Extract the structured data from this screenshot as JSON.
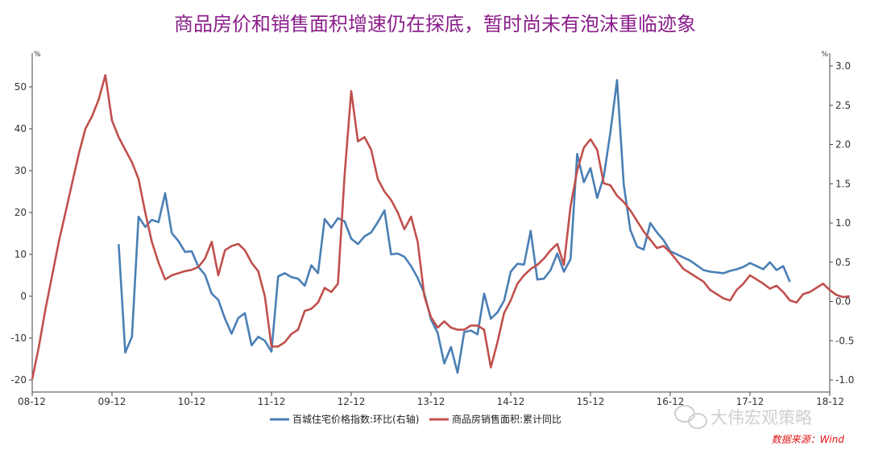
{
  "title": "商品房价和销售面积增速仍在探底，暂时尚未有泡沫重临迹象",
  "watermark": "大伟宏观策略",
  "source": "数据来源：Wind",
  "chart_data": {
    "type": "line",
    "x_ticks": [
      "08-12",
      "09-12",
      "10-12",
      "11-12",
      "12-12",
      "13-12",
      "14-12",
      "15-12",
      "16-12",
      "17-12",
      "18-12"
    ],
    "y_left": {
      "unit": "%",
      "lim": [
        -20,
        55
      ],
      "ticks": [
        "50",
        "40",
        "30",
        "20",
        "10",
        "0",
        "-10",
        "-20"
      ]
    },
    "y_right": {
      "unit": "%",
      "lim": [
        -1.0,
        3.0
      ],
      "ticks": [
        "3.0",
        "2.5",
        "2.0",
        "1.5",
        "1.0",
        "0.5",
        "0.0",
        "-0.5",
        "-1.0"
      ]
    },
    "grid": false,
    "legend_position": "bottom",
    "series": [
      {
        "name": "百城住宅价格指数:环比(右轴)",
        "axis": "right",
        "color": "#4a7fb5",
        "x_start_month": 13,
        "values": [
          0.73,
          -0.65,
          -0.45,
          1.08,
          0.95,
          1.04,
          1.01,
          1.38,
          0.87,
          0.77,
          0.63,
          0.64,
          0.44,
          0.34,
          0.1,
          0.02,
          -0.22,
          -0.41,
          -0.21,
          -0.15,
          -0.56,
          -0.45,
          -0.5,
          -0.64,
          0.32,
          0.36,
          0.31,
          0.29,
          0.2,
          0.46,
          0.36,
          1.05,
          0.94,
          1.06,
          1.02,
          0.8,
          0.73,
          0.83,
          0.88,
          1.01,
          1.16,
          0.6,
          0.61,
          0.57,
          0.45,
          0.3,
          0.1,
          -0.23,
          -0.4,
          -0.79,
          -0.58,
          -0.91,
          -0.39,
          -0.37,
          -0.42,
          0.1,
          -0.22,
          -0.14,
          0.01,
          0.38,
          0.48,
          0.47,
          0.9,
          0.28,
          0.29,
          0.4,
          0.61,
          0.38,
          0.54,
          1.88,
          1.52,
          1.7,
          1.32,
          1.59,
          2.16,
          2.82,
          1.49,
          0.91,
          0.7,
          0.66,
          1.0,
          0.88,
          0.78,
          0.64,
          0.6,
          0.56,
          0.52,
          0.46,
          0.4,
          0.38,
          0.37,
          0.36,
          0.39,
          0.41,
          0.44,
          0.49,
          0.45,
          0.41,
          0.5,
          0.4,
          0.45,
          0.25
        ]
      },
      {
        "name": "商品房销售面积:累计同比",
        "axis": "left",
        "color": "#c0504d",
        "x_start_month": 0,
        "values": [
          -19.8,
          -12.0,
          -3.0,
          5.0,
          13.0,
          20.0,
          27.0,
          34.0,
          40.0,
          43.0,
          47.0,
          52.8,
          42.0,
          38.0,
          35.0,
          32.0,
          28.0,
          20.0,
          13.0,
          8.0,
          4.0,
          5.0,
          5.5,
          6.0,
          6.3,
          7.0,
          9.0,
          13.0,
          5.0,
          11.0,
          12.0,
          12.5,
          11.0,
          8.0,
          6.0,
          0.0,
          -12.0,
          -12.0,
          -11.0,
          -9.0,
          -8.0,
          -3.5,
          -3.0,
          -1.5,
          2.0,
          1.0,
          3.0,
          29.0,
          49.0,
          37.0,
          38.0,
          35.0,
          28.0,
          25.0,
          23.0,
          20.0,
          16.0,
          19.0,
          13.0,
          0.0,
          -5.0,
          -7.5,
          -6.0,
          -7.5,
          -8.0,
          -8.0,
          -7.0,
          -7.0,
          -8.0,
          -17.0,
          -11.0,
          -4.0,
          -1.0,
          3.0,
          5.0,
          6.5,
          7.5,
          9.0,
          11.0,
          12.5,
          7.5,
          21.5,
          30.0,
          35.5,
          37.5,
          35.0,
          27.0,
          26.5,
          24.0,
          22.5,
          20.5,
          18.0,
          15.5,
          13.5,
          11.5,
          12.0,
          10.5,
          8.5,
          6.5,
          5.5,
          4.5,
          3.5,
          1.5,
          0.5,
          -0.5,
          -1.0,
          1.5,
          3.0,
          5.0,
          4.0,
          3.0,
          1.8,
          2.5,
          1.0,
          -1.0,
          -1.5,
          0.5,
          1.0,
          2.0,
          3.0,
          1.5,
          0.3,
          -0.2,
          0.0
        ]
      }
    ]
  }
}
